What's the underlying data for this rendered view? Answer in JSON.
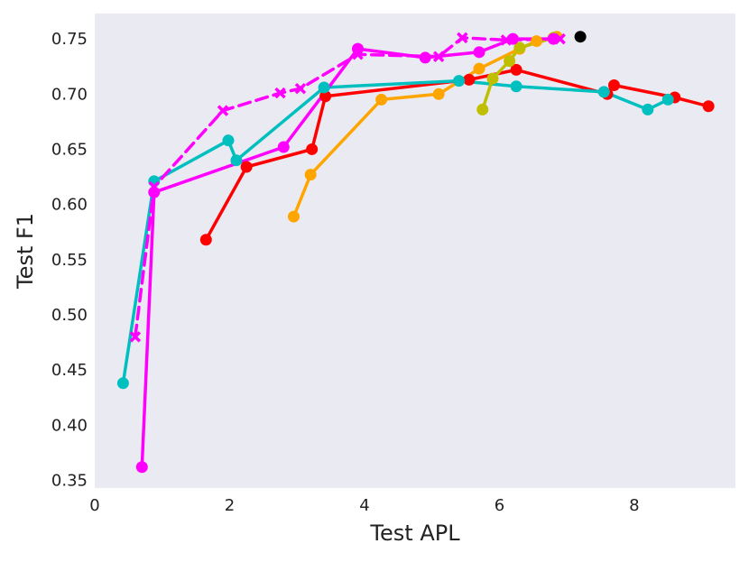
{
  "chart_data": {
    "type": "line",
    "title": "",
    "xlabel": "Test APL",
    "ylabel": "Test F1",
    "xlim": [
      0,
      9.5
    ],
    "ylim": [
      0.343,
      0.773
    ],
    "x_ticks": [
      0,
      2,
      4,
      6,
      8
    ],
    "y_ticks": [
      0.35,
      0.4,
      0.45,
      0.5,
      0.55,
      0.6,
      0.65,
      0.7,
      0.75
    ],
    "grid": false,
    "background_color": "#eaeaf2",
    "series": [
      {
        "color": "#ff0000",
        "marker": "circle",
        "linestyle": "solid",
        "points": [
          [
            1.65,
            0.568
          ],
          [
            2.25,
            0.634
          ],
          [
            3.22,
            0.65
          ],
          [
            3.42,
            0.698
          ],
          [
            5.55,
            0.713
          ],
          [
            6.25,
            0.722
          ],
          [
            7.6,
            0.7
          ],
          [
            7.7,
            0.708
          ],
          [
            8.6,
            0.697
          ],
          [
            9.1,
            0.689
          ]
        ]
      },
      {
        "color": "#00bfbf",
        "marker": "circle",
        "linestyle": "solid",
        "points": [
          [
            0.42,
            0.438
          ],
          [
            0.88,
            0.621
          ],
          [
            1.98,
            0.658
          ],
          [
            2.1,
            0.64
          ],
          [
            3.4,
            0.706
          ],
          [
            5.4,
            0.712
          ],
          [
            6.25,
            0.707
          ],
          [
            7.55,
            0.702
          ],
          [
            8.2,
            0.686
          ],
          [
            8.5,
            0.695
          ]
        ]
      },
      {
        "color": "#ffa500",
        "marker": "circle",
        "linestyle": "solid",
        "points": [
          [
            2.95,
            0.589
          ],
          [
            3.2,
            0.627
          ],
          [
            4.25,
            0.695
          ],
          [
            5.1,
            0.7
          ],
          [
            5.7,
            0.723
          ],
          [
            6.3,
            0.741
          ],
          [
            6.55,
            0.748
          ],
          [
            6.85,
            0.752
          ]
        ]
      },
      {
        "color": "#bfbf00",
        "marker": "circle",
        "linestyle": "solid",
        "points": [
          [
            5.75,
            0.686
          ],
          [
            5.9,
            0.714
          ],
          [
            6.15,
            0.73
          ],
          [
            6.3,
            0.742
          ],
          [
            6.8,
            0.751
          ]
        ]
      },
      {
        "color": "#ff00ff",
        "marker": "circle",
        "linestyle": "solid",
        "points": [
          [
            0.7,
            0.362
          ],
          [
            0.88,
            0.611
          ],
          [
            2.8,
            0.652
          ],
          [
            3.9,
            0.741
          ],
          [
            4.9,
            0.733
          ],
          [
            5.7,
            0.738
          ],
          [
            6.2,
            0.75
          ],
          [
            6.8,
            0.75
          ]
        ]
      },
      {
        "color": "#ff00ff",
        "marker": "x",
        "linestyle": "dashed",
        "points": [
          [
            0.6,
            0.48
          ],
          [
            0.88,
            0.616
          ],
          [
            1.9,
            0.685
          ],
          [
            2.75,
            0.701
          ],
          [
            3.05,
            0.705
          ],
          [
            3.9,
            0.736
          ],
          [
            5.1,
            0.734
          ],
          [
            5.45,
            0.751
          ],
          [
            6.1,
            0.749
          ],
          [
            6.9,
            0.75
          ]
        ]
      },
      {
        "color": "#000000",
        "marker": "circle",
        "linestyle": "none",
        "points": [
          [
            7.2,
            0.752
          ]
        ]
      }
    ]
  }
}
